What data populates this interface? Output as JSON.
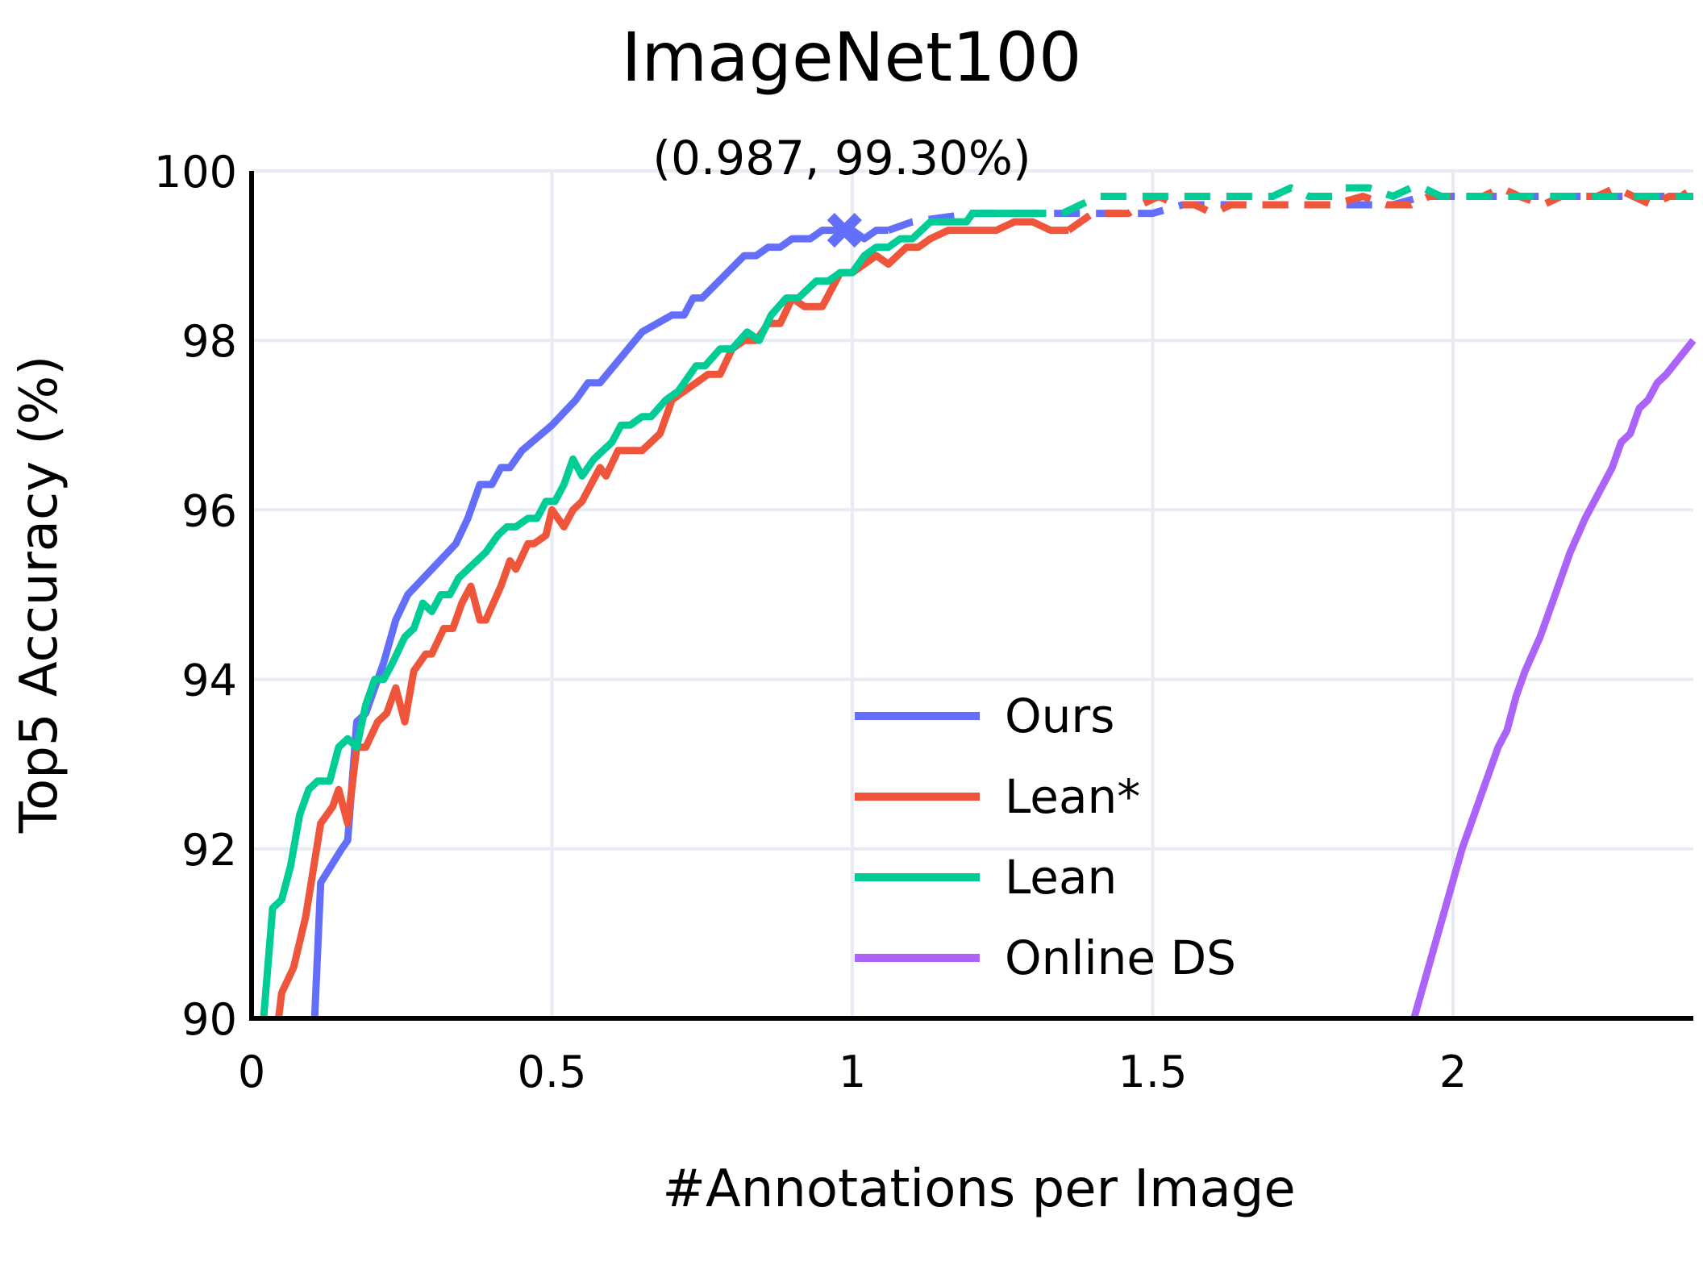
{
  "chart_data": {
    "type": "line",
    "title": "ImageNet100",
    "xlabel": "#Annotations per Image",
    "ylabel": "Top5 Accuracy (%)",
    "xlim": [
      0,
      2.4
    ],
    "ylim": [
      90,
      100
    ],
    "xticks": [
      0,
      0.5,
      1,
      1.5,
      2
    ],
    "xtick_labels": [
      "0",
      "0.5",
      "1",
      "1.5",
      "2"
    ],
    "yticks": [
      90,
      92,
      94,
      96,
      98,
      100
    ],
    "ytick_labels": [
      "90",
      "92",
      "94",
      "96",
      "98",
      "100"
    ],
    "grid": true,
    "legend_position": "lower-right",
    "colors": {
      "Ours": "#636efa",
      "Lean*": "#ef553b",
      "Lean": "#00cc96",
      "Online DS": "#ab63fa"
    },
    "series": [
      {
        "name": "Ours",
        "solid": [
          [
            0.105,
            90.0
          ],
          [
            0.115,
            91.6
          ],
          [
            0.15,
            92.0
          ],
          [
            0.16,
            92.1
          ],
          [
            0.175,
            93.5
          ],
          [
            0.19,
            93.6
          ],
          [
            0.22,
            94.2
          ],
          [
            0.24,
            94.7
          ],
          [
            0.26,
            95.0
          ],
          [
            0.3,
            95.3
          ],
          [
            0.34,
            95.6
          ],
          [
            0.36,
            95.9
          ],
          [
            0.38,
            96.3
          ],
          [
            0.4,
            96.3
          ],
          [
            0.415,
            96.5
          ],
          [
            0.43,
            96.5
          ],
          [
            0.45,
            96.7
          ],
          [
            0.5,
            97.0
          ],
          [
            0.54,
            97.3
          ],
          [
            0.56,
            97.5
          ],
          [
            0.58,
            97.5
          ],
          [
            0.65,
            98.1
          ],
          [
            0.7,
            98.3
          ],
          [
            0.72,
            98.3
          ],
          [
            0.735,
            98.5
          ],
          [
            0.75,
            98.5
          ],
          [
            0.82,
            99.0
          ],
          [
            0.84,
            99.0
          ],
          [
            0.86,
            99.1
          ],
          [
            0.88,
            99.1
          ],
          [
            0.9,
            99.2
          ],
          [
            0.93,
            99.2
          ],
          [
            0.95,
            99.3
          ],
          [
            1.0,
            99.3
          ],
          [
            1.02,
            99.2
          ],
          [
            1.04,
            99.3
          ],
          [
            1.06,
            99.3
          ]
        ],
        "dashed": [
          [
            1.06,
            99.3
          ],
          [
            1.1,
            99.4
          ],
          [
            1.2,
            99.5
          ],
          [
            1.3,
            99.5
          ],
          [
            1.5,
            99.5
          ],
          [
            1.55,
            99.6
          ],
          [
            1.6,
            99.6
          ],
          [
            1.7,
            99.6
          ],
          [
            1.8,
            99.6
          ],
          [
            1.85,
            99.6
          ],
          [
            1.9,
            99.6
          ],
          [
            1.95,
            99.7
          ],
          [
            2.0,
            99.7
          ],
          [
            2.1,
            99.7
          ],
          [
            2.2,
            99.7
          ],
          [
            2.3,
            99.7
          ],
          [
            2.4,
            99.7
          ]
        ]
      },
      {
        "name": "Lean*",
        "solid": [
          [
            0.045,
            90.0
          ],
          [
            0.05,
            90.3
          ],
          [
            0.07,
            90.6
          ],
          [
            0.09,
            91.2
          ],
          [
            0.115,
            92.3
          ],
          [
            0.135,
            92.5
          ],
          [
            0.145,
            92.7
          ],
          [
            0.16,
            92.3
          ],
          [
            0.175,
            93.2
          ],
          [
            0.19,
            93.2
          ],
          [
            0.21,
            93.5
          ],
          [
            0.225,
            93.6
          ],
          [
            0.24,
            93.9
          ],
          [
            0.255,
            93.5
          ],
          [
            0.27,
            94.1
          ],
          [
            0.29,
            94.3
          ],
          [
            0.3,
            94.3
          ],
          [
            0.32,
            94.6
          ],
          [
            0.335,
            94.6
          ],
          [
            0.35,
            94.9
          ],
          [
            0.365,
            95.1
          ],
          [
            0.38,
            94.7
          ],
          [
            0.39,
            94.7
          ],
          [
            0.415,
            95.1
          ],
          [
            0.43,
            95.4
          ],
          [
            0.44,
            95.3
          ],
          [
            0.46,
            95.6
          ],
          [
            0.47,
            95.6
          ],
          [
            0.49,
            95.7
          ],
          [
            0.5,
            96.0
          ],
          [
            0.52,
            95.8
          ],
          [
            0.535,
            96.0
          ],
          [
            0.55,
            96.1
          ],
          [
            0.58,
            96.5
          ],
          [
            0.59,
            96.4
          ],
          [
            0.61,
            96.7
          ],
          [
            0.65,
            96.7
          ],
          [
            0.68,
            96.9
          ],
          [
            0.7,
            97.3
          ],
          [
            0.72,
            97.4
          ],
          [
            0.74,
            97.5
          ],
          [
            0.76,
            97.6
          ],
          [
            0.78,
            97.6
          ],
          [
            0.8,
            97.9
          ],
          [
            0.82,
            98.0
          ],
          [
            0.84,
            98.0
          ],
          [
            0.86,
            98.2
          ],
          [
            0.88,
            98.2
          ],
          [
            0.9,
            98.5
          ],
          [
            0.92,
            98.4
          ],
          [
            0.95,
            98.4
          ],
          [
            0.98,
            98.8
          ],
          [
            1.0,
            98.8
          ],
          [
            1.02,
            98.9
          ],
          [
            1.04,
            99.0
          ],
          [
            1.06,
            98.9
          ],
          [
            1.09,
            99.1
          ],
          [
            1.11,
            99.1
          ],
          [
            1.13,
            99.2
          ],
          [
            1.16,
            99.3
          ],
          [
            1.2,
            99.3
          ],
          [
            1.24,
            99.3
          ],
          [
            1.27,
            99.4
          ],
          [
            1.3,
            99.4
          ],
          [
            1.33,
            99.3
          ],
          [
            1.36,
            99.3
          ]
        ],
        "dashed": [
          [
            1.36,
            99.3
          ],
          [
            1.4,
            99.5
          ],
          [
            1.46,
            99.5
          ],
          [
            1.48,
            99.6
          ],
          [
            1.51,
            99.7
          ],
          [
            1.54,
            99.6
          ],
          [
            1.57,
            99.6
          ],
          [
            1.6,
            99.5
          ],
          [
            1.63,
            99.6
          ],
          [
            1.7,
            99.6
          ],
          [
            1.8,
            99.6
          ],
          [
            1.85,
            99.7
          ],
          [
            1.89,
            99.6
          ],
          [
            1.93,
            99.6
          ],
          [
            1.96,
            99.7
          ],
          [
            2.0,
            99.7
          ],
          [
            2.05,
            99.7
          ],
          [
            2.08,
            99.8
          ],
          [
            2.11,
            99.7
          ],
          [
            2.15,
            99.6
          ],
          [
            2.18,
            99.7
          ],
          [
            2.24,
            99.7
          ],
          [
            2.27,
            99.8
          ],
          [
            2.3,
            99.7
          ],
          [
            2.33,
            99.6
          ],
          [
            2.36,
            99.7
          ],
          [
            2.38,
            99.7
          ],
          [
            2.4,
            99.8
          ]
        ]
      },
      {
        "name": "Lean",
        "solid": [
          [
            0.02,
            90.0
          ],
          [
            0.035,
            91.3
          ],
          [
            0.05,
            91.4
          ],
          [
            0.065,
            91.8
          ],
          [
            0.08,
            92.4
          ],
          [
            0.095,
            92.7
          ],
          [
            0.11,
            92.8
          ],
          [
            0.13,
            92.8
          ],
          [
            0.145,
            93.2
          ],
          [
            0.16,
            93.3
          ],
          [
            0.175,
            93.2
          ],
          [
            0.19,
            93.7
          ],
          [
            0.205,
            94.0
          ],
          [
            0.22,
            94.0
          ],
          [
            0.235,
            94.2
          ],
          [
            0.255,
            94.5
          ],
          [
            0.27,
            94.6
          ],
          [
            0.285,
            94.9
          ],
          [
            0.3,
            94.8
          ],
          [
            0.315,
            95.0
          ],
          [
            0.33,
            95.0
          ],
          [
            0.345,
            95.2
          ],
          [
            0.36,
            95.3
          ],
          [
            0.39,
            95.5
          ],
          [
            0.41,
            95.7
          ],
          [
            0.425,
            95.8
          ],
          [
            0.44,
            95.8
          ],
          [
            0.46,
            95.9
          ],
          [
            0.475,
            95.9
          ],
          [
            0.49,
            96.1
          ],
          [
            0.505,
            96.1
          ],
          [
            0.52,
            96.3
          ],
          [
            0.535,
            96.6
          ],
          [
            0.55,
            96.4
          ],
          [
            0.57,
            96.6
          ],
          [
            0.6,
            96.8
          ],
          [
            0.615,
            97.0
          ],
          [
            0.63,
            97.0
          ],
          [
            0.65,
            97.1
          ],
          [
            0.665,
            97.1
          ],
          [
            0.69,
            97.3
          ],
          [
            0.71,
            97.4
          ],
          [
            0.74,
            97.7
          ],
          [
            0.755,
            97.7
          ],
          [
            0.78,
            97.9
          ],
          [
            0.8,
            97.9
          ],
          [
            0.825,
            98.1
          ],
          [
            0.845,
            98.0
          ],
          [
            0.865,
            98.3
          ],
          [
            0.89,
            98.5
          ],
          [
            0.91,
            98.5
          ],
          [
            0.94,
            98.7
          ],
          [
            0.96,
            98.7
          ],
          [
            0.98,
            98.8
          ],
          [
            1.0,
            98.8
          ],
          [
            1.02,
            99.0
          ],
          [
            1.04,
            99.1
          ],
          [
            1.06,
            99.1
          ],
          [
            1.08,
            99.2
          ],
          [
            1.1,
            99.2
          ],
          [
            1.13,
            99.4
          ],
          [
            1.16,
            99.4
          ],
          [
            1.19,
            99.4
          ],
          [
            1.2,
            99.5
          ],
          [
            1.25,
            99.5
          ],
          [
            1.28,
            99.5
          ]
        ],
        "dashed": [
          [
            1.28,
            99.5
          ],
          [
            1.35,
            99.5
          ],
          [
            1.38,
            99.6
          ],
          [
            1.41,
            99.7
          ],
          [
            1.45,
            99.7
          ],
          [
            1.5,
            99.7
          ],
          [
            1.55,
            99.7
          ],
          [
            1.6,
            99.7
          ],
          [
            1.65,
            99.7
          ],
          [
            1.7,
            99.7
          ],
          [
            1.73,
            99.8
          ],
          [
            1.76,
            99.7
          ],
          [
            1.8,
            99.7
          ],
          [
            1.82,
            99.8
          ],
          [
            1.86,
            99.8
          ],
          [
            1.9,
            99.7
          ],
          [
            1.93,
            99.8
          ],
          [
            1.95,
            99.8
          ],
          [
            1.98,
            99.7
          ],
          [
            2.05,
            99.7
          ],
          [
            2.1,
            99.7
          ],
          [
            2.2,
            99.7
          ],
          [
            2.3,
            99.7
          ],
          [
            2.4,
            99.7
          ]
        ]
      },
      {
        "name": "Online DS",
        "solid": [
          [
            1.935,
            90.0
          ],
          [
            1.975,
            91.0
          ],
          [
            2.015,
            92.0
          ],
          [
            2.035,
            92.4
          ],
          [
            2.055,
            92.8
          ],
          [
            2.075,
            93.2
          ],
          [
            2.09,
            93.4
          ],
          [
            2.105,
            93.8
          ],
          [
            2.12,
            94.1
          ],
          [
            2.145,
            94.5
          ],
          [
            2.17,
            95.0
          ],
          [
            2.195,
            95.5
          ],
          [
            2.22,
            95.9
          ],
          [
            2.25,
            96.3
          ],
          [
            2.265,
            96.5
          ],
          [
            2.28,
            96.8
          ],
          [
            2.295,
            96.9
          ],
          [
            2.31,
            97.2
          ],
          [
            2.325,
            97.3
          ],
          [
            2.34,
            97.5
          ],
          [
            2.355,
            97.6
          ],
          [
            2.4,
            98.0
          ]
        ],
        "dashed": []
      }
    ],
    "annotations": [
      {
        "text": "(0.987, 99.30%)",
        "x": 0.987,
        "y": 99.3,
        "marker": "x",
        "series": "Ours"
      }
    ]
  }
}
